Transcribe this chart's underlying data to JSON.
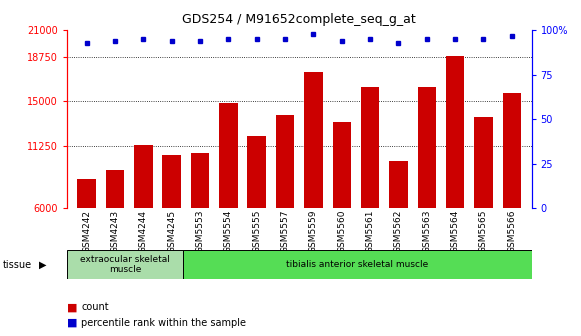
{
  "title": "GDS254 / M91652complete_seq_g_at",
  "samples": [
    "GSM4242",
    "GSM4243",
    "GSM4244",
    "GSM4245",
    "GSM5553",
    "GSM5554",
    "GSM5555",
    "GSM5557",
    "GSM5559",
    "GSM5560",
    "GSM5561",
    "GSM5562",
    "GSM5563",
    "GSM5564",
    "GSM5565",
    "GSM5566"
  ],
  "counts": [
    8500,
    9200,
    11300,
    10500,
    10700,
    14900,
    12100,
    13900,
    17500,
    13300,
    16200,
    10000,
    16200,
    18800,
    13700,
    15700
  ],
  "percentiles": [
    93,
    94,
    95,
    94,
    94,
    95,
    95,
    95,
    98,
    94,
    95,
    93,
    95,
    95,
    95,
    97
  ],
  "bar_color": "#cc0000",
  "dot_color": "#0000cc",
  "ylim_left": [
    6000,
    21000
  ],
  "ylim_right": [
    0,
    100
  ],
  "yticks_left": [
    6000,
    11250,
    15000,
    18750,
    21000
  ],
  "yticks_right": [
    0,
    25,
    50,
    75,
    100
  ],
  "grid_lines": [
    11250,
    15000,
    18750
  ],
  "tissue_groups": [
    {
      "label": "extraocular skeletal\nmuscle",
      "n": 4,
      "color": "#aaddaa"
    },
    {
      "label": "tibialis anterior skeletal muscle",
      "n": 12,
      "color": "#55dd55"
    }
  ],
  "tissue_label": "tissue",
  "legend_count_label": "count",
  "legend_percentile_label": "percentile rank within the sample",
  "background_color": "#ffffff",
  "plot_bg_color": "#ffffff"
}
